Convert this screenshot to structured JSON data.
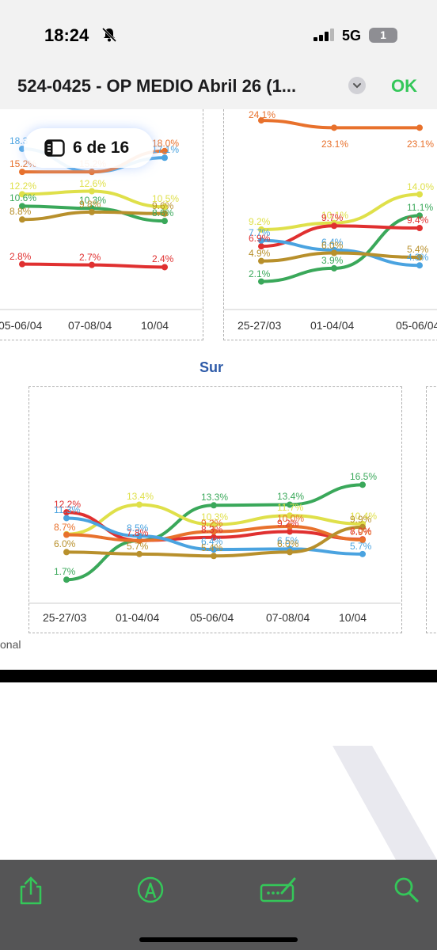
{
  "status": {
    "time": "18:24",
    "network": "5G",
    "battery": "1"
  },
  "nav": {
    "title": "524-0425 - OP MEDIO Abril 26 (1...",
    "ok_label": "OK"
  },
  "page_indicator": "6 de 16",
  "footnote": "onal",
  "colors": {
    "blue": "#4aa3e0",
    "orange": "#e8712c",
    "yellow": "#dfe04a",
    "green": "#3aa85a",
    "gold": "#b8902c",
    "red": "#e03030",
    "accent_ok": "#34c759",
    "sur_title": "#2d5aa8"
  },
  "toolbar_icons": [
    "share-icon",
    "markup-icon",
    "signature-icon",
    "search-icon"
  ],
  "chart_data": [
    {
      "type": "line",
      "title": "",
      "categories": [
        "05-06/04",
        "07-08/04",
        "10/04"
      ],
      "series": [
        {
          "color": "#4aa3e0",
          "values": [
            18.3,
            15.2,
            17.1
          ],
          "labels": [
            "18.3",
            "",
            "17.1%"
          ]
        },
        {
          "color": "#e8712c",
          "values": [
            15.2,
            15.2,
            18.0
          ],
          "labels": [
            "15.2%",
            "15.2%",
            "18.0%"
          ]
        },
        {
          "color": "#dfe04a",
          "values": [
            12.2,
            12.6,
            10.5
          ],
          "labels": [
            "12.2%",
            "12.6%",
            "10.5%"
          ]
        },
        {
          "color": "#3aa85a",
          "values": [
            10.6,
            10.3,
            8.6
          ],
          "labels": [
            "10.6%",
            "10.3%",
            "8.6%"
          ]
        },
        {
          "color": "#b8902c",
          "values": [
            8.8,
            9.8,
            9.6
          ],
          "labels": [
            "8.8%",
            "9.8%",
            "9.6%"
          ]
        },
        {
          "color": "#e03030",
          "values": [
            2.8,
            2.7,
            2.4
          ],
          "labels": [
            "2.8%",
            "2.7%",
            "2.4%"
          ]
        }
      ]
    },
    {
      "type": "line",
      "title": "",
      "categories": [
        "25-27/03",
        "01-04/04",
        "05-06/04"
      ],
      "series": [
        {
          "color": "#e8712c",
          "values": [
            24.1,
            23.1,
            23.1
          ],
          "labels": [
            "24.1%",
            "23.1%",
            "23.1%"
          ]
        },
        {
          "color": "#dfe04a",
          "values": [
            9.2,
            10.1,
            14.0
          ],
          "labels": [
            "9.2%",
            "10.1%",
            "14.0%"
          ]
        },
        {
          "color": "#3aa85a",
          "values": [
            2.1,
            3.9,
            11.1
          ],
          "labels": [
            "2.1%",
            "3.9%",
            "11.1%"
          ]
        },
        {
          "color": "#e03030",
          "values": [
            6.9,
            9.7,
            9.4
          ],
          "labels": [
            "6.9%",
            "9.7%",
            "9.4%"
          ]
        },
        {
          "color": "#4aa3e0",
          "values": [
            7.7,
            6.4,
            4.3
          ],
          "labels": [
            "7.7%",
            "6.4%",
            "4.3%"
          ]
        },
        {
          "color": "#b8902c",
          "values": [
            4.9,
            6.0,
            5.4
          ],
          "labels": [
            "4.9%",
            "6.0%",
            "5.4%"
          ]
        }
      ]
    },
    {
      "type": "line",
      "title": "Sur",
      "categories": [
        "25-27/03",
        "01-04/04",
        "05-06/04",
        "07-08/04",
        "10/04"
      ],
      "series": [
        {
          "color": "#3aa85a",
          "values": [
            1.7,
            7.8,
            13.3,
            13.4,
            16.5
          ],
          "labels": [
            "1.7%",
            "",
            "13.3%",
            "13.4%",
            "16.5%"
          ]
        },
        {
          "color": "#dfe04a",
          "values": [
            8.8,
            13.4,
            10.3,
            11.7,
            10.4
          ],
          "labels": [
            "",
            "13.4%",
            "10.3%",
            "11.7%",
            "10.4%"
          ]
        },
        {
          "color": "#e03030",
          "values": [
            12.2,
            7.8,
            8.3,
            9.2,
            8.0
          ],
          "labels": [
            "12.2%",
            "7.8%",
            "8.3%",
            "9.2%",
            "8.0%"
          ]
        },
        {
          "color": "#e8712c",
          "values": [
            8.7,
            7.8,
            9.2,
            10.0,
            7.9
          ],
          "labels": [
            "8.7%",
            "",
            "9.2%",
            "10.0%",
            "7.9%"
          ]
        },
        {
          "color": "#4aa3e0",
          "values": [
            11.3,
            8.5,
            6.4,
            6.5,
            5.7
          ],
          "labels": [
            "11.3%",
            "8.5%",
            "6.4%",
            "6.5%",
            "5.7%"
          ]
        },
        {
          "color": "#b8902c",
          "values": [
            6.0,
            5.7,
            5.4,
            6.0,
            9.9
          ],
          "labels": [
            "6.0%",
            "5.7%",
            "5.4%",
            "6.0%",
            "9.9%"
          ]
        }
      ]
    }
  ]
}
